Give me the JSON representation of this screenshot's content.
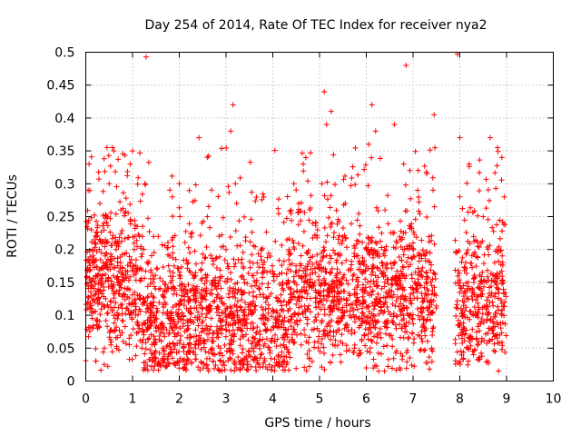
{
  "chart_data": {
    "type": "scatter",
    "title": "Day 254 of 2014, Rate Of TEC Index for receiver nya2",
    "xlabel": "GPS time / hours",
    "ylabel": "ROTI / TECUs",
    "xlim": [
      0,
      10
    ],
    "ylim": [
      0,
      0.5
    ],
    "x_ticks": [
      "0",
      "1",
      "2",
      "3",
      "4",
      "5",
      "6",
      "7",
      "8",
      "9",
      "10"
    ],
    "y_ticks": [
      "0",
      "0.05",
      "0.1",
      "0.15",
      "0.2",
      "0.25",
      "0.3",
      "0.35",
      "0.4",
      "0.45",
      "0.5"
    ],
    "marker": "plus",
    "color": "#ff0000",
    "data_gap": [
      7.5,
      7.9
    ],
    "series": [
      {
        "name": "ROTI",
        "points": [
          [
            0.05,
            0.29
          ],
          [
            0.07,
            0.33
          ],
          [
            0.12,
            0.23
          ],
          [
            0.15,
            0.18
          ],
          [
            0.2,
            0.12
          ],
          [
            0.25,
            0.08
          ],
          [
            0.3,
            0.27
          ],
          [
            0.35,
            0.15
          ],
          [
            0.4,
            0.05
          ],
          [
            0.45,
            0.21
          ],
          [
            0.5,
            0.3
          ],
          [
            0.57,
            0.355
          ],
          [
            0.6,
            0.35
          ],
          [
            0.65,
            0.2
          ],
          [
            0.7,
            0.1
          ],
          [
            0.75,
            0.26
          ],
          [
            0.8,
            0.06
          ],
          [
            0.88,
            0.14
          ],
          [
            0.95,
            0.33
          ],
          [
            1.0,
            0.35
          ],
          [
            1.05,
            0.22
          ],
          [
            1.1,
            0.09
          ],
          [
            1.15,
            0.17
          ],
          [
            1.2,
            0.05
          ],
          [
            1.29,
            0.493
          ],
          [
            1.35,
            0.08
          ],
          [
            1.45,
            0.12
          ],
          [
            1.55,
            0.22
          ],
          [
            1.65,
            0.05
          ],
          [
            1.75,
            0.1
          ],
          [
            1.85,
            0.28
          ],
          [
            1.95,
            0.07
          ],
          [
            2.0,
            0.3
          ],
          [
            2.05,
            0.13
          ],
          [
            2.15,
            0.03
          ],
          [
            2.25,
            0.09
          ],
          [
            2.35,
            0.16
          ],
          [
            2.42,
            0.37
          ],
          [
            2.5,
            0.11
          ],
          [
            2.6,
            0.25
          ],
          [
            2.7,
            0.06
          ],
          [
            2.8,
            0.14
          ],
          [
            2.9,
            0.09
          ],
          [
            3.0,
            0.2
          ],
          [
            3.1,
            0.38
          ],
          [
            3.15,
            0.42
          ],
          [
            3.2,
            0.3
          ],
          [
            3.25,
            0.1
          ],
          [
            3.35,
            0.02
          ],
          [
            3.45,
            0.08
          ],
          [
            3.55,
            0.05
          ],
          [
            3.65,
            0.15
          ],
          [
            3.75,
            0.04
          ],
          [
            3.85,
            0.12
          ],
          [
            3.95,
            0.19
          ],
          [
            4.05,
            0.07
          ],
          [
            4.15,
            0.1
          ],
          [
            4.25,
            0.03
          ],
          [
            4.35,
            0.2
          ],
          [
            4.45,
            0.3
          ],
          [
            4.55,
            0.16
          ],
          [
            4.65,
            0.33
          ],
          [
            4.75,
            0.11
          ],
          [
            4.85,
            0.24
          ],
          [
            4.95,
            0.08
          ],
          [
            5.0,
            0.12
          ],
          [
            5.05,
            0.3
          ],
          [
            5.1,
            0.44
          ],
          [
            5.15,
            0.39
          ],
          [
            5.25,
            0.41
          ],
          [
            5.35,
            0.16
          ],
          [
            5.45,
            0.06
          ],
          [
            5.55,
            0.27
          ],
          [
            5.65,
            0.13
          ],
          [
            5.75,
            0.05
          ],
          [
            5.85,
            0.18
          ],
          [
            5.95,
            0.09
          ],
          [
            6.0,
            0.02
          ],
          [
            6.05,
            0.36
          ],
          [
            6.12,
            0.42
          ],
          [
            6.2,
            0.38
          ],
          [
            6.3,
            0.12
          ],
          [
            6.4,
            0.26
          ],
          [
            6.5,
            0.07
          ],
          [
            6.6,
            0.39
          ],
          [
            6.7,
            0.16
          ],
          [
            6.8,
            0.33
          ],
          [
            6.85,
            0.48
          ],
          [
            6.9,
            0.1
          ],
          [
            7.0,
            0.21
          ],
          [
            7.1,
            0.29
          ],
          [
            7.2,
            0.06
          ],
          [
            7.3,
            0.14
          ],
          [
            7.4,
            0.05
          ],
          [
            7.45,
            0.405
          ],
          [
            7.95,
            0.497
          ],
          [
            8.0,
            0.37
          ],
          [
            8.1,
            0.08
          ],
          [
            8.2,
            0.33
          ],
          [
            8.3,
            0.15
          ],
          [
            8.4,
            0.06
          ],
          [
            8.5,
            0.25
          ],
          [
            8.6,
            0.03
          ],
          [
            8.65,
            0.37
          ],
          [
            8.7,
            0.12
          ],
          [
            8.8,
            0.2
          ],
          [
            8.85,
            0.07
          ],
          [
            8.9,
            0.34
          ],
          [
            8.95,
            0.28
          ]
        ]
      }
    ]
  }
}
